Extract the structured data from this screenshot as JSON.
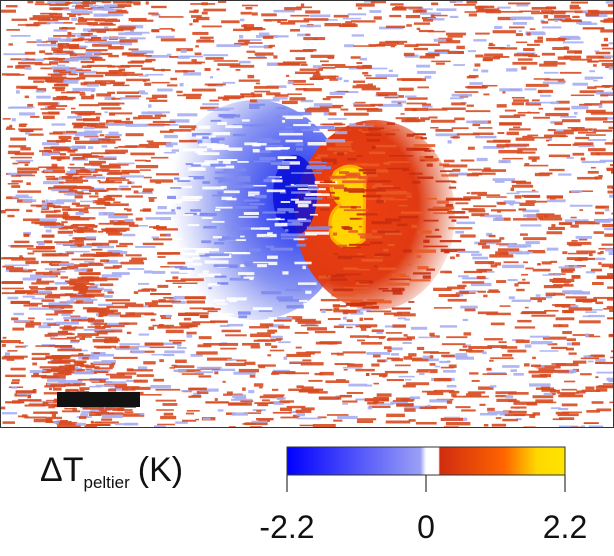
{
  "label": {
    "symbol": "ΔT",
    "subscript": "peltier",
    "unit": "(K)"
  },
  "colorbar": {
    "range": [
      -2.2,
      2.2
    ],
    "ticks": [
      -2.2,
      0,
      2.2
    ]
  }
}
